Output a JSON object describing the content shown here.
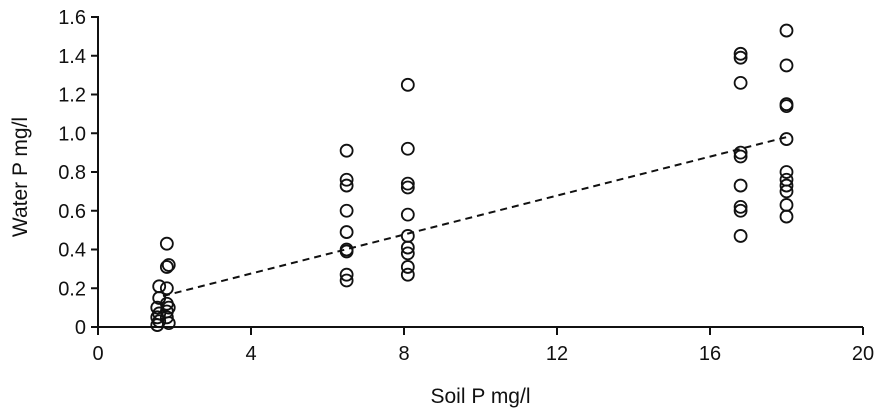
{
  "chart_data": {
    "type": "scatter",
    "xlabel": "Soil P mg/l",
    "ylabel": "Water P mg/l",
    "xlim": [
      0,
      20
    ],
    "ylim": [
      0,
      1.6
    ],
    "x_ticks": [
      0,
      4,
      8,
      12,
      16,
      20
    ],
    "x_tick_labels": [
      "0",
      "4",
      "8",
      "12",
      "16",
      "20"
    ],
    "y_ticks": [
      0,
      0.2,
      0.4,
      0.6,
      0.8,
      1.0,
      1.2,
      1.4,
      1.6
    ],
    "y_tick_labels": [
      "0",
      "0.2",
      "0.4",
      "0.6",
      "0.8",
      "1.0",
      "1.2",
      "1.4",
      "1.6"
    ],
    "grid": false,
    "series": [
      {
        "marker": "open-circle",
        "points": [
          [
            1.55,
            0.01
          ],
          [
            1.6,
            0.03
          ],
          [
            1.55,
            0.05
          ],
          [
            1.6,
            0.07
          ],
          [
            1.55,
            0.1
          ],
          [
            1.6,
            0.15
          ],
          [
            1.6,
            0.21
          ],
          [
            1.85,
            0.02
          ],
          [
            1.8,
            0.05
          ],
          [
            1.8,
            0.08
          ],
          [
            1.85,
            0.1
          ],
          [
            1.8,
            0.12
          ],
          [
            1.8,
            0.2
          ],
          [
            1.8,
            0.31
          ],
          [
            1.85,
            0.32
          ],
          [
            1.8,
            0.43
          ],
          [
            6.5,
            0.24
          ],
          [
            6.5,
            0.27
          ],
          [
            6.5,
            0.39
          ],
          [
            6.5,
            0.4
          ],
          [
            6.5,
            0.49
          ],
          [
            6.5,
            0.6
          ],
          [
            6.5,
            0.73
          ],
          [
            6.5,
            0.76
          ],
          [
            6.5,
            0.91
          ],
          [
            8.1,
            0.27
          ],
          [
            8.1,
            0.31
          ],
          [
            8.1,
            0.38
          ],
          [
            8.1,
            0.41
          ],
          [
            8.1,
            0.47
          ],
          [
            8.1,
            0.58
          ],
          [
            8.1,
            0.72
          ],
          [
            8.1,
            0.74
          ],
          [
            8.1,
            0.92
          ],
          [
            8.1,
            1.25
          ],
          [
            16.8,
            0.47
          ],
          [
            16.8,
            0.6
          ],
          [
            16.8,
            0.62
          ],
          [
            16.8,
            0.73
          ],
          [
            16.8,
            0.88
          ],
          [
            16.8,
            0.9
          ],
          [
            16.8,
            1.26
          ],
          [
            16.8,
            1.39
          ],
          [
            16.8,
            1.41
          ],
          [
            18.0,
            0.57
          ],
          [
            18.0,
            0.63
          ],
          [
            18.0,
            0.7
          ],
          [
            18.0,
            0.73
          ],
          [
            18.0,
            0.76
          ],
          [
            18.0,
            0.8
          ],
          [
            18.0,
            0.97
          ],
          [
            18.0,
            1.14
          ],
          [
            18.0,
            1.15
          ],
          [
            18.0,
            1.35
          ],
          [
            18.0,
            1.53
          ]
        ]
      }
    ],
    "trendline": {
      "style": "dashed",
      "x": [
        1.7,
        18.0
      ],
      "y": [
        0.16,
        0.98
      ]
    }
  }
}
